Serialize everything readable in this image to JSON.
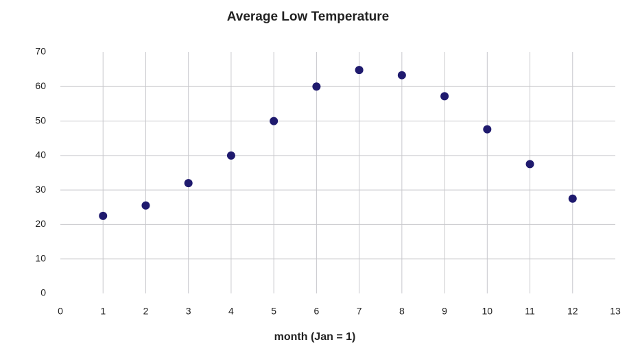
{
  "chart_data": {
    "type": "scatter",
    "title": "Average Low Temperature",
    "x_label": "month (Jan = 1)",
    "x": [
      1,
      2,
      3,
      4,
      5,
      6,
      7,
      8,
      9,
      10,
      11,
      12
    ],
    "values": [
      22.5,
      25.5,
      32,
      40,
      50,
      60,
      64.8,
      63.3,
      57.2,
      47.6,
      37.5,
      27.5
    ],
    "color": "#1f1a6e",
    "xlim": [
      0,
      13
    ],
    "xticks": [
      0,
      1,
      2,
      3,
      4,
      5,
      6,
      7,
      8,
      9,
      10,
      11,
      12,
      13
    ],
    "ylim": [
      0,
      70
    ],
    "yticks": [
      0,
      10,
      20,
      30,
      40,
      50,
      60,
      70
    ],
    "grid": true
  }
}
